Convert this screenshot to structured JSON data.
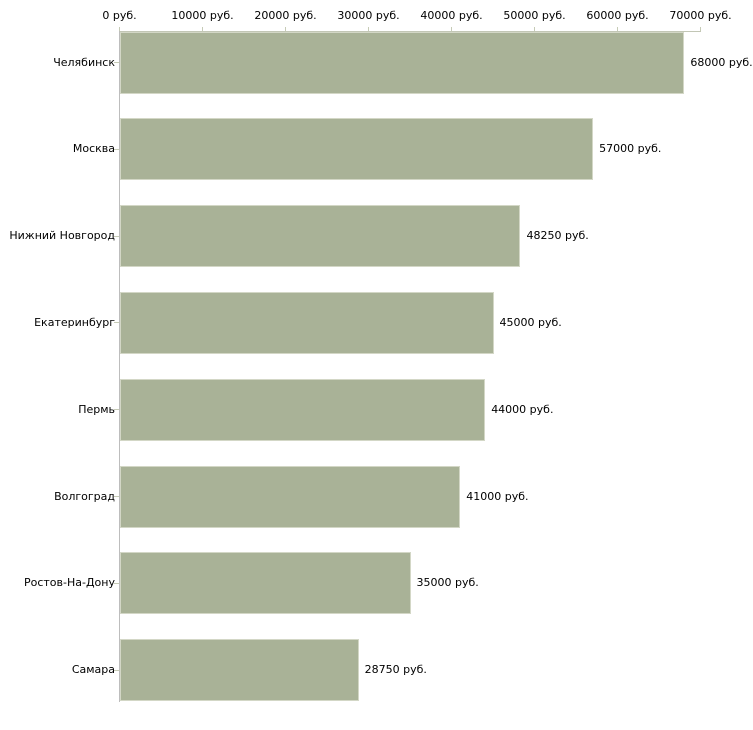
{
  "chart_data": {
    "type": "bar",
    "orientation": "horizontal",
    "title": "",
    "xlabel": "",
    "ylabel": "",
    "grid": false,
    "legend": "none",
    "categories": [
      "Челябинск",
      "Москва",
      "Нижний Новгород",
      "Екатеринбург",
      "Пермь",
      "Волгоград",
      "Ростов-На-Дону",
      "Самара"
    ],
    "values": [
      68000,
      57000,
      48250,
      45000,
      44000,
      41000,
      35000,
      28750
    ],
    "value_labels": [
      "68000 руб.",
      "57000 руб.",
      "48250 руб.",
      "45000 руб.",
      "44000 руб.",
      "41000 руб.",
      "35000 руб.",
      "28750 руб."
    ],
    "x_axis": {
      "position": "top",
      "min": 0,
      "max": 70000,
      "ticks": [
        0,
        10000,
        20000,
        30000,
        40000,
        50000,
        60000,
        70000
      ],
      "tick_labels": [
        "0 руб.",
        "10000 руб.",
        "20000 руб.",
        "30000 руб.",
        "40000 руб.",
        "50000 руб.",
        "60000 руб.",
        "70000 руб."
      ]
    },
    "colors": {
      "bar_fill": "#a9b297",
      "bar_border": "#d3d7c6",
      "axis_line": "#bdbdbd",
      "top_axis_line": "#c2c6b5",
      "tick_mark": "#c6cbb6",
      "text": "#000000",
      "background": "#ffffff"
    }
  }
}
